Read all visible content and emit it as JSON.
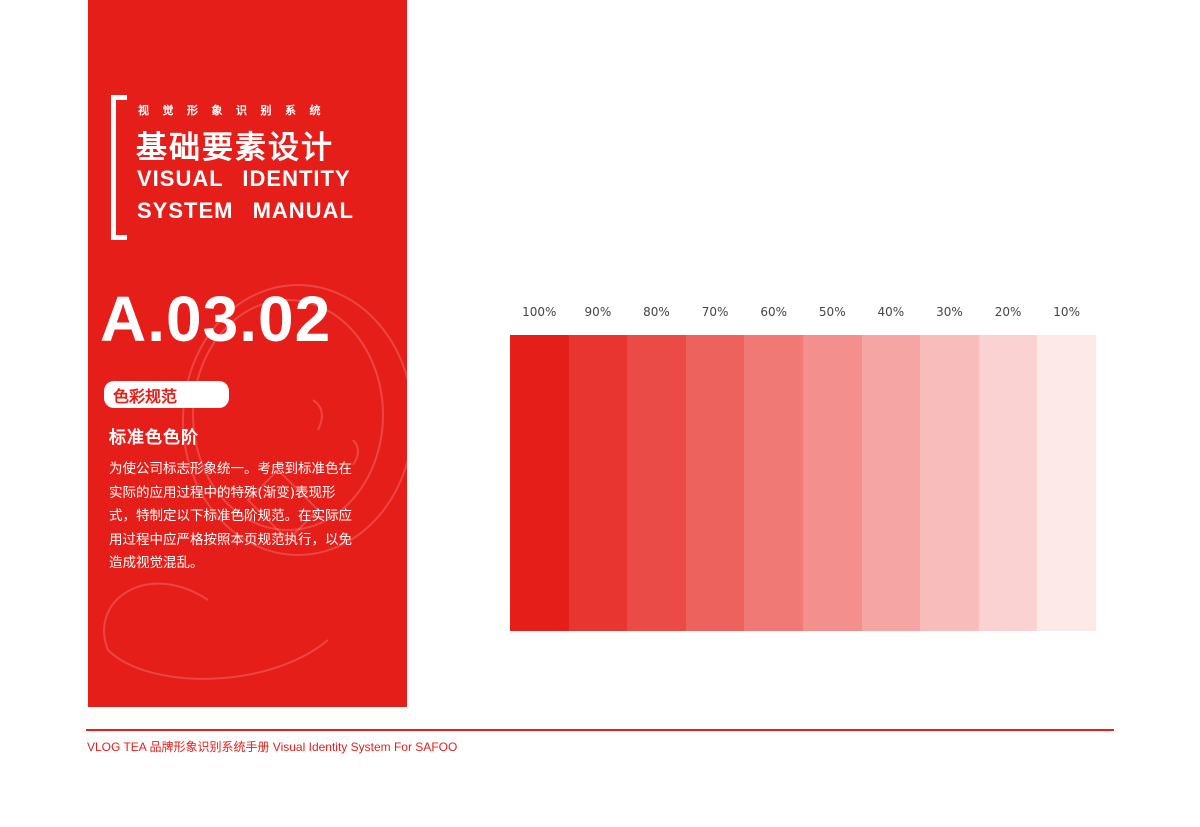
{
  "panel": {
    "subtitle": "视觉形象识别系统",
    "title_cn": "基础要素设计",
    "title_en_1": "VISUAL IDENTITY",
    "title_en_2": "SYSTEM MANUAL",
    "code": "A.03.02",
    "tag": "色彩规范",
    "heading": "标准色色阶",
    "description": "为使公司标志形象统一。考虑到标准色在实际的应用过程中的特殊(渐变)表现形式，特制定以下标准色阶规范。在实际应用过程中应严格按照本页规范执行，以免造成视觉混乱。",
    "color": "#e61e19"
  },
  "swatches": {
    "base_color": "#e61e19",
    "items": [
      {
        "label": "100%",
        "tint": 1.0
      },
      {
        "label": "90%",
        "tint": 0.9
      },
      {
        "label": "80%",
        "tint": 0.8
      },
      {
        "label": "70%",
        "tint": 0.7
      },
      {
        "label": "60%",
        "tint": 0.6
      },
      {
        "label": "50%",
        "tint": 0.5
      },
      {
        "label": "40%",
        "tint": 0.4
      },
      {
        "label": "30%",
        "tint": 0.3
      },
      {
        "label": "20%",
        "tint": 0.2
      },
      {
        "label": "10%",
        "tint": 0.1
      }
    ]
  },
  "footer": {
    "text": "VLOG TEA 品牌形象识别系统手册  Visual Identity System For SAFOO"
  }
}
